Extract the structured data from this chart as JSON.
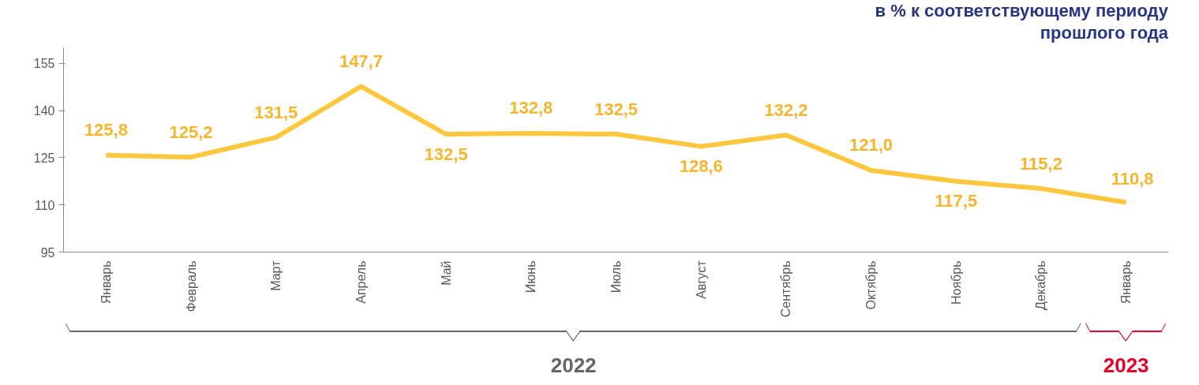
{
  "chart_data": {
    "type": "line",
    "title": "в % к соответствующему периоду\nпрошлого года",
    "categories": [
      "Январь",
      "Февраль",
      "Март",
      "Апрель",
      "Май",
      "Июнь",
      "Июль",
      "Август",
      "Сентябрь",
      "Октябрь",
      "Ноябрь",
      "Декабрь",
      "Январь"
    ],
    "series": [
      {
        "color": "#fcc73f",
        "values": [
          125.8,
          125.2,
          131.5,
          147.7,
          132.5,
          132.8,
          132.5,
          128.6,
          132.2,
          121.0,
          117.5,
          115.2,
          110.8
        ],
        "value_labels": [
          "125,8",
          "125,2",
          "131,5",
          "147,7",
          "132,5",
          "132,8",
          "132,5",
          "128,6",
          "132,2",
          "121,0",
          "117,5",
          "115,2",
          "110,8"
        ]
      }
    ],
    "ylim": [
      95,
      160
    ],
    "yticks": [
      95,
      110,
      125,
      140,
      155
    ],
    "grid": false,
    "marker": "none",
    "line_style": "solid",
    "annotations": [
      "2022",
      "2023"
    ]
  }
}
